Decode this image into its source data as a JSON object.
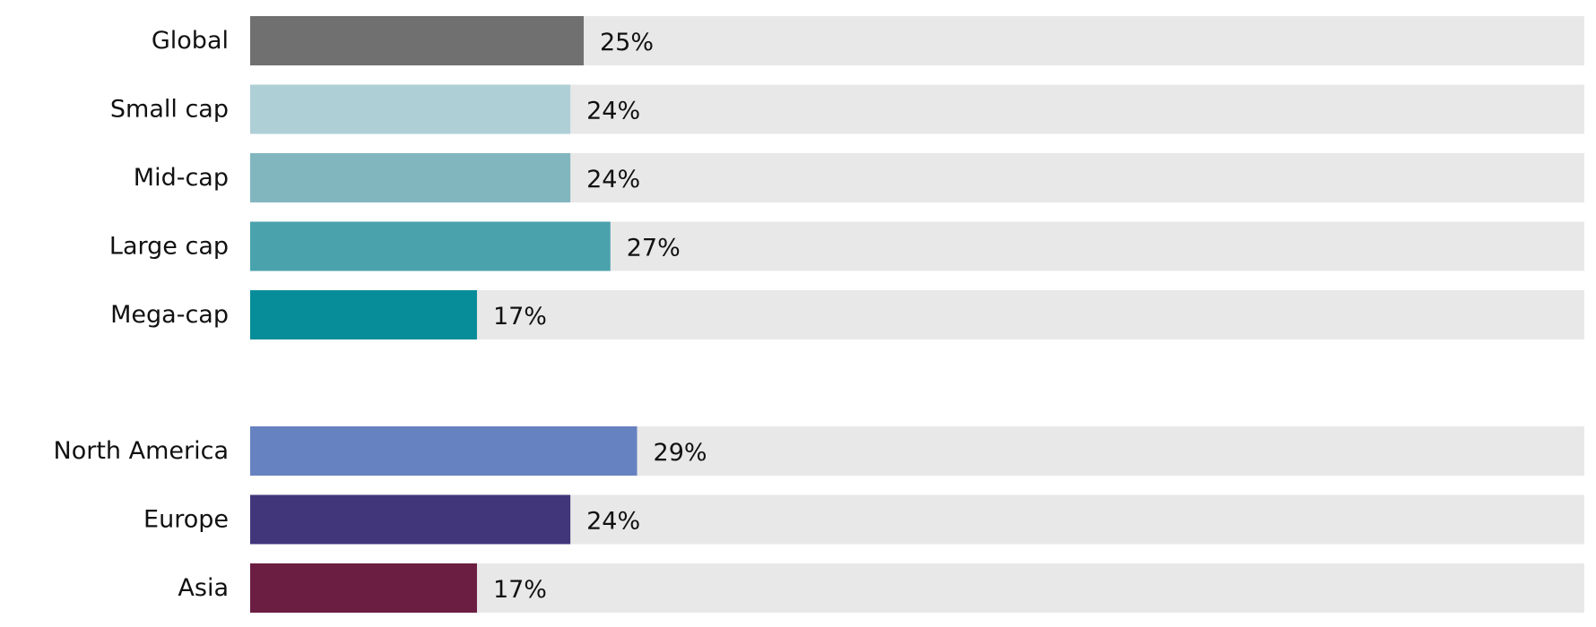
{
  "chart_data": {
    "type": "bar",
    "orientation": "horizontal",
    "xlim": [
      0,
      100
    ],
    "grid": false,
    "legend": "none",
    "track_color": "#e8e8e8",
    "groups": [
      {
        "categories": [
          {
            "label": "Global",
            "value": 25,
            "value_label": "25%",
            "color": "#707070"
          },
          {
            "label": "Small cap",
            "value": 24,
            "value_label": "24%",
            "color": "#afcfd6"
          },
          {
            "label": "Mid-cap",
            "value": 24,
            "value_label": "24%",
            "color": "#82b6bf"
          },
          {
            "label": "Large cap",
            "value": 27,
            "value_label": "27%",
            "color": "#4aa2ad"
          },
          {
            "label": "Mega-cap",
            "value": 17,
            "value_label": "17%",
            "color": "#078d99"
          }
        ]
      },
      {
        "categories": [
          {
            "label": "North America",
            "value": 29,
            "value_label": "29%",
            "color": "#6782c1"
          },
          {
            "label": "Europe",
            "value": 24,
            "value_label": "24%",
            "color": "#42367b"
          },
          {
            "label": "Asia",
            "value": 17,
            "value_label": "17%",
            "color": "#6b1d42"
          }
        ]
      }
    ]
  }
}
